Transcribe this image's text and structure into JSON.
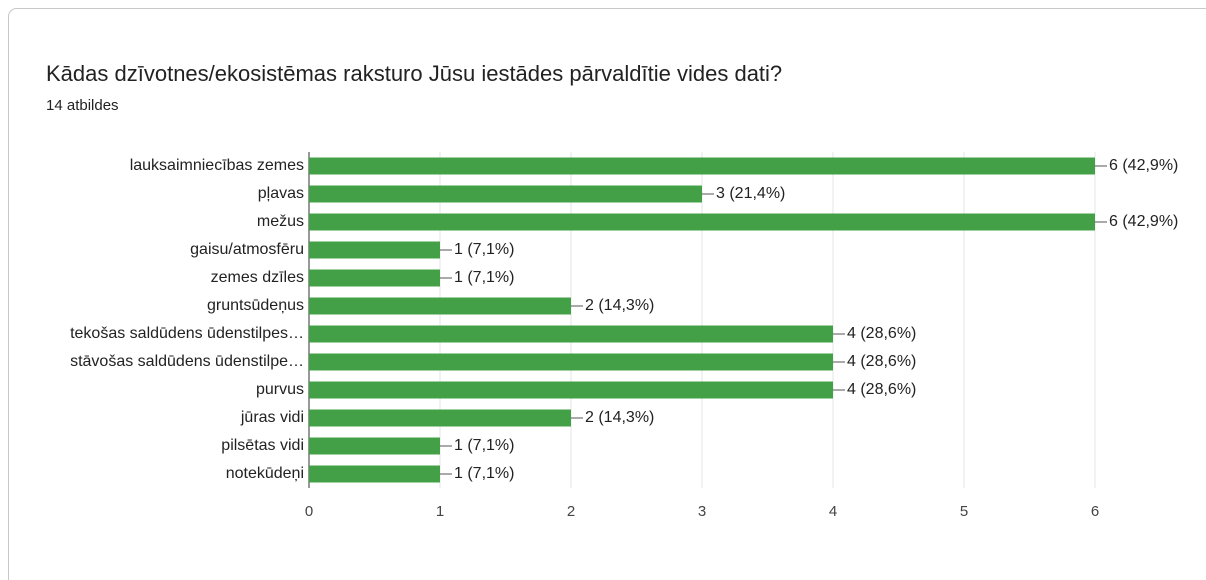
{
  "chart_data": {
    "type": "bar",
    "orientation": "horizontal",
    "title": "Kādas dzīvotnes/ekosistēmas raksturo Jūsu iestādes pārvaldītie vides dati?",
    "subtitle": "14 atbildes",
    "categories": [
      "lauksaimniecības zemes",
      "pļavas",
      "mežus",
      "gaisu/atmosfēru",
      "zemes dzīles",
      "gruntsūdeņus",
      "tekošas saldūdens ūdenstilpes…",
      "stāvošas saldūdens ūdenstilpe…",
      "purvus",
      "jūras vidi",
      "pilsētas vidi",
      "notekūdeņi"
    ],
    "values": [
      6,
      3,
      6,
      1,
      1,
      2,
      4,
      4,
      4,
      2,
      1,
      1
    ],
    "value_labels": [
      "6 (42,9%)",
      "3 (21,4%)",
      "6 (42,9%)",
      "1 (7,1%)",
      "1 (7,1%)",
      "2 (14,3%)",
      "4 (28,6%)",
      "4 (28,6%)",
      "4 (28,6%)",
      "2 (14,3%)",
      "1 (7,1%)",
      "1 (7,1%)"
    ],
    "color": "#43a047",
    "xlim": [
      0,
      6
    ],
    "xticks": [
      0,
      1,
      2,
      3,
      4,
      5,
      6
    ],
    "grid": true
  }
}
